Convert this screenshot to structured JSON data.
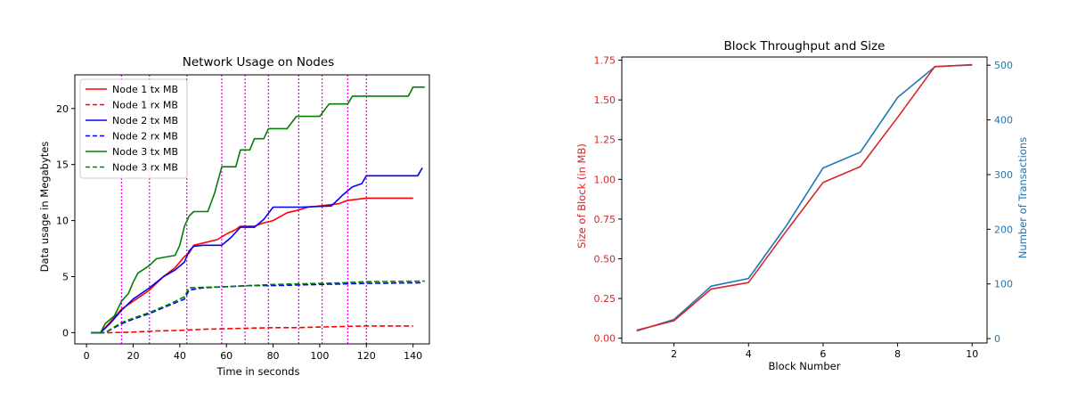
{
  "chart_data": [
    {
      "type": "line",
      "title": "Network Usage on Nodes",
      "xlabel": "Time in seconds",
      "ylabel": "Data usage in Megabytes",
      "xlim": [
        -5,
        147
      ],
      "ylim": [
        -1,
        23
      ],
      "xticks": [
        0,
        20,
        40,
        60,
        80,
        100,
        120,
        140
      ],
      "yticks": [
        0,
        5,
        10,
        15,
        20
      ],
      "grid": false,
      "legend": "top-left",
      "vlines": [
        15,
        27,
        43,
        58,
        68,
        78,
        91,
        101,
        112,
        120
      ],
      "vline_color": "#ff00ff",
      "series": [
        {
          "name": "Node 1 tx MB",
          "color": "#ff0000",
          "dash": false,
          "points": [
            [
              2,
              0
            ],
            [
              6,
              0
            ],
            [
              10,
              0.9
            ],
            [
              15,
              2.1
            ],
            [
              20,
              2.8
            ],
            [
              27,
              3.8
            ],
            [
              33,
              5
            ],
            [
              38,
              5.8
            ],
            [
              42,
              6.8
            ],
            [
              44,
              7.1
            ],
            [
              46,
              7.8
            ],
            [
              50,
              8
            ],
            [
              56,
              8.3
            ],
            [
              60,
              8.8
            ],
            [
              64,
              9.2
            ],
            [
              66,
              9.5
            ],
            [
              72,
              9.5
            ],
            [
              76,
              9.8
            ],
            [
              80,
              10
            ],
            [
              86,
              10.7
            ],
            [
              90,
              10.9
            ],
            [
              95,
              11.2
            ],
            [
              100,
              11.3
            ],
            [
              108,
              11.5
            ],
            [
              112,
              11.8
            ],
            [
              116,
              11.9
            ],
            [
              120,
              12
            ],
            [
              140,
              12
            ]
          ]
        },
        {
          "name": "Node 1 rx MB",
          "color": "#ff0000",
          "dash": true,
          "points": [
            [
              2,
              0
            ],
            [
              10,
              0
            ],
            [
              20,
              0.05
            ],
            [
              30,
              0.15
            ],
            [
              40,
              0.2
            ],
            [
              50,
              0.3
            ],
            [
              60,
              0.35
            ],
            [
              70,
              0.4
            ],
            [
              80,
              0.45
            ],
            [
              90,
              0.45
            ],
            [
              100,
              0.5
            ],
            [
              110,
              0.55
            ],
            [
              120,
              0.6
            ],
            [
              140,
              0.6
            ]
          ]
        },
        {
          "name": "Node 2 tx MB",
          "color": "#0000ff",
          "dash": false,
          "points": [
            [
              2,
              0
            ],
            [
              6,
              0
            ],
            [
              10,
              0.8
            ],
            [
              15,
              2
            ],
            [
              20,
              3
            ],
            [
              27,
              4
            ],
            [
              33,
              5
            ],
            [
              38,
              5.6
            ],
            [
              42,
              6.3
            ],
            [
              44,
              7.3
            ],
            [
              46,
              7.7
            ],
            [
              50,
              7.8
            ],
            [
              58,
              7.8
            ],
            [
              62,
              8.5
            ],
            [
              66,
              9.4
            ],
            [
              72,
              9.4
            ],
            [
              76,
              10.1
            ],
            [
              80,
              11.2
            ],
            [
              92,
              11.2
            ],
            [
              105,
              11.3
            ],
            [
              110,
              12.3
            ],
            [
              114,
              13
            ],
            [
              118,
              13.3
            ],
            [
              120,
              14
            ],
            [
              142,
              14
            ],
            [
              144,
              14.7
            ]
          ]
        },
        {
          "name": "Node 2 rx MB",
          "color": "#0000ff",
          "dash": true,
          "points": [
            [
              2,
              0
            ],
            [
              8,
              0
            ],
            [
              15,
              0.8
            ],
            [
              20,
              1.2
            ],
            [
              27,
              1.7
            ],
            [
              35,
              2.4
            ],
            [
              42,
              3
            ],
            [
              44,
              3.8
            ],
            [
              50,
              4
            ],
            [
              60,
              4.1
            ],
            [
              70,
              4.2
            ],
            [
              80,
              4.2
            ],
            [
              90,
              4.25
            ],
            [
              100,
              4.3
            ],
            [
              110,
              4.35
            ],
            [
              120,
              4.4
            ],
            [
              144,
              4.45
            ]
          ]
        },
        {
          "name": "Node 3 tx MB",
          "color": "#008000",
          "dash": false,
          "points": [
            [
              2,
              0
            ],
            [
              6,
              0
            ],
            [
              8,
              0.8
            ],
            [
              12,
              1.5
            ],
            [
              15,
              2.8
            ],
            [
              18,
              3.5
            ],
            [
              20,
              4.5
            ],
            [
              22,
              5.3
            ],
            [
              27,
              6
            ],
            [
              30,
              6.6
            ],
            [
              38,
              6.9
            ],
            [
              40,
              7.8
            ],
            [
              42,
              9.5
            ],
            [
              44,
              10.4
            ],
            [
              46,
              10.8
            ],
            [
              52,
              10.8
            ],
            [
              55,
              12.5
            ],
            [
              58,
              14.8
            ],
            [
              64,
              14.8
            ],
            [
              66,
              16.3
            ],
            [
              70,
              16.3
            ],
            [
              72,
              17.3
            ],
            [
              76,
              17.3
            ],
            [
              78,
              18.2
            ],
            [
              86,
              18.2
            ],
            [
              90,
              19.3
            ],
            [
              100,
              19.3
            ],
            [
              104,
              20.4
            ],
            [
              112,
              20.4
            ],
            [
              114,
              21.1
            ],
            [
              138,
              21.1
            ],
            [
              140,
              21.9
            ],
            [
              145,
              21.9
            ]
          ]
        },
        {
          "name": "Node 3 rx MB",
          "color": "#008000",
          "dash": true,
          "points": [
            [
              2,
              0
            ],
            [
              8,
              0
            ],
            [
              15,
              0.9
            ],
            [
              20,
              1.3
            ],
            [
              27,
              1.8
            ],
            [
              35,
              2.5
            ],
            [
              42,
              3.2
            ],
            [
              44,
              4
            ],
            [
              50,
              4.05
            ],
            [
              60,
              4.1
            ],
            [
              70,
              4.2
            ],
            [
              80,
              4.3
            ],
            [
              90,
              4.35
            ],
            [
              100,
              4.4
            ],
            [
              110,
              4.45
            ],
            [
              120,
              4.55
            ],
            [
              145,
              4.6
            ]
          ]
        }
      ],
      "legend_entries": [
        "Node 1 tx MB",
        "Node 1 rx MB",
        "Node 2 tx MB",
        "Node 2 rx MB",
        "Node 3 tx MB",
        "Node 3 rx MB"
      ]
    },
    {
      "type": "line",
      "title": "Block Throughput and Size",
      "xlabel": "Block Number",
      "ylabel_left": "Size of Block (in MB)",
      "ylabel_right": "Number of Transactions",
      "xlim": [
        0.6,
        10.4
      ],
      "ylim_left": [
        -0.03,
        1.77
      ],
      "ylim_right": [
        -8,
        515
      ],
      "xticks": [
        2,
        4,
        6,
        8,
        10
      ],
      "yticks_left": [
        "0.00",
        "0.25",
        "0.50",
        "0.75",
        "1.00",
        "1.25",
        "1.50",
        "1.75"
      ],
      "yticks_right": [
        0,
        100,
        200,
        300,
        400,
        500
      ],
      "left_color": "#d62728",
      "right_color": "#1f77b4",
      "grid": false,
      "blocks": [
        1,
        2,
        3,
        4,
        5,
        6,
        7,
        8,
        9,
        10
      ],
      "size_mb": [
        0.05,
        0.11,
        0.31,
        0.35,
        0.67,
        0.98,
        1.08,
        1.39,
        1.71,
        1.72
      ],
      "transactions": [
        14,
        35,
        96,
        110,
        205,
        312,
        341,
        441,
        497,
        501
      ]
    }
  ]
}
